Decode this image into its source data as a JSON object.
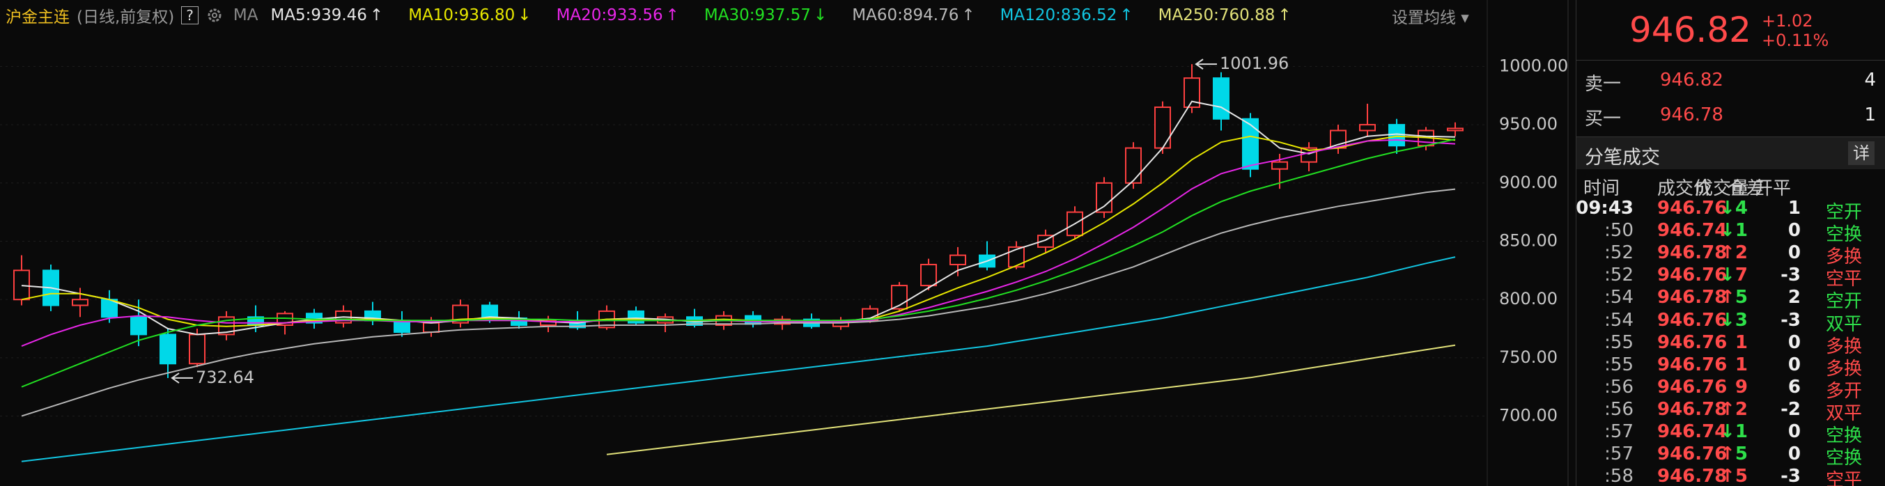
{
  "chart_data": {
    "type": "candlestick",
    "title": "沪金主连",
    "subtitle": "(日线,前复权)",
    "help": "?",
    "ma_label": "MA",
    "settings": "设置均线",
    "ylim": [
      640,
      1057
    ],
    "yticks": [
      {
        "value": 1000,
        "label": "1000.00"
      },
      {
        "value": 950,
        "label": "950.00"
      },
      {
        "value": 900,
        "label": "900.00"
      },
      {
        "value": 850,
        "label": "850.00"
      },
      {
        "value": 800,
        "label": "800.00"
      },
      {
        "value": 750,
        "label": "750.00"
      },
      {
        "value": 700,
        "label": "700.00"
      }
    ],
    "grid": true,
    "up_color": "#ff4040",
    "down_color": "#00d8e8",
    "candles": [
      [
        800,
        838,
        795,
        825
      ],
      [
        825,
        830,
        790,
        795
      ],
      [
        795,
        810,
        785,
        800
      ],
      [
        800,
        808,
        780,
        785
      ],
      [
        785,
        800,
        760,
        770
      ],
      [
        770,
        775,
        732.64,
        745
      ],
      [
        745,
        775,
        742,
        770
      ],
      [
        770,
        790,
        765,
        785
      ],
      [
        785,
        795,
        772,
        778
      ],
      [
        778,
        790,
        770,
        788
      ],
      [
        788,
        792,
        775,
        780
      ],
      [
        780,
        795,
        776,
        790
      ],
      [
        790,
        798,
        778,
        782
      ],
      [
        782,
        790,
        768,
        772
      ],
      [
        772,
        785,
        768,
        780
      ],
      [
        780,
        800,
        776,
        795
      ],
      [
        795,
        798,
        780,
        784
      ],
      [
        784,
        790,
        775,
        778
      ],
      [
        778,
        786,
        772,
        782
      ],
      [
        782,
        790,
        774,
        776
      ],
      [
        776,
        795,
        774,
        790
      ],
      [
        790,
        794,
        778,
        780
      ],
      [
        780,
        788,
        772,
        785
      ],
      [
        785,
        792,
        776,
        778
      ],
      [
        778,
        790,
        774,
        786
      ],
      [
        786,
        790,
        776,
        779
      ],
      [
        779,
        786,
        774,
        783
      ],
      [
        783,
        788,
        775,
        777
      ],
      [
        777,
        785,
        774,
        782
      ],
      [
        782,
        795,
        780,
        792
      ],
      [
        792,
        815,
        790,
        812
      ],
      [
        812,
        835,
        808,
        830
      ],
      [
        830,
        845,
        820,
        838
      ],
      [
        838,
        850,
        825,
        828
      ],
      [
        828,
        850,
        826,
        845
      ],
      [
        845,
        860,
        840,
        855
      ],
      [
        855,
        880,
        852,
        875
      ],
      [
        875,
        905,
        870,
        900
      ],
      [
        900,
        935,
        895,
        930
      ],
      [
        930,
        970,
        925,
        965
      ],
      [
        965,
        1001.96,
        960,
        990
      ],
      [
        990,
        995,
        945,
        955
      ],
      [
        955,
        960,
        905,
        912
      ],
      [
        912,
        925,
        895,
        918
      ],
      [
        918,
        935,
        910,
        930
      ],
      [
        930,
        950,
        925,
        945
      ],
      [
        945,
        968,
        940,
        950
      ],
      [
        950,
        955,
        925,
        932
      ],
      [
        932,
        948,
        928,
        945
      ],
      [
        945,
        952,
        940,
        946.82
      ]
    ],
    "series": [
      {
        "name": "MA5:939.46",
        "trend": "↑",
        "color": "#e6e6e6",
        "values": [
          812,
          810,
          805,
          800,
          790,
          775,
          770,
          772,
          776,
          780,
          783,
          785,
          784,
          782,
          780,
          782,
          785,
          784,
          781,
          780,
          783,
          784,
          783,
          781,
          782,
          782,
          781,
          781,
          781,
          784,
          795,
          810,
          825,
          833,
          843,
          851,
          865,
          880,
          902,
          930,
          970,
          965,
          950,
          930,
          925,
          933,
          940,
          942,
          940,
          939.46
        ]
      },
      {
        "name": "MA10:936.80",
        "trend": "↓",
        "color": "#e8e800",
        "values": [
          800,
          805,
          805,
          800,
          793,
          783,
          778,
          777,
          778,
          780,
          782,
          783,
          783,
          782,
          781,
          783,
          784,
          783,
          781,
          781,
          783,
          783,
          782,
          782,
          783,
          782,
          781,
          781,
          781,
          783,
          790,
          800,
          810,
          819,
          829,
          840,
          852,
          866,
          882,
          900,
          920,
          935,
          940,
          935,
          928,
          930,
          936,
          940,
          939,
          936.8
        ]
      },
      {
        "name": "MA20:933.56",
        "trend": "↑",
        "color": "#e826e8",
        "values": [
          760,
          770,
          778,
          784,
          786,
          785,
          782,
          780,
          780,
          780,
          781,
          782,
          782,
          781,
          781,
          782,
          782,
          782,
          781,
          781,
          782,
          782,
          782,
          782,
          782,
          781,
          781,
          781,
          781,
          782,
          787,
          793,
          800,
          807,
          815,
          824,
          835,
          848,
          862,
          878,
          895,
          908,
          915,
          920,
          926,
          931,
          936,
          937,
          935,
          933.56
        ]
      },
      {
        "name": "MA30:937.57",
        "trend": "↓",
        "color": "#22e022",
        "values": [
          725,
          735,
          745,
          755,
          765,
          772,
          778,
          782,
          784,
          784,
          783,
          783,
          782,
          782,
          782,
          782,
          783,
          783,
          783,
          782,
          782,
          782,
          782,
          782,
          782,
          782,
          782,
          782,
          782,
          783,
          786,
          790,
          795,
          801,
          808,
          816,
          825,
          835,
          846,
          858,
          872,
          884,
          893,
          900,
          907,
          914,
          921,
          927,
          932,
          937.57
        ]
      },
      {
        "name": "MA60:894.76",
        "trend": "↑",
        "color": "#b8b8b8",
        "values": [
          700,
          708,
          716,
          724,
          731,
          737,
          743,
          749,
          754,
          758,
          762,
          765,
          768,
          770,
          772,
          774,
          775,
          776,
          777,
          777,
          778,
          778,
          778,
          779,
          779,
          779,
          780,
          780,
          780,
          781,
          783,
          786,
          790,
          794,
          799,
          805,
          812,
          820,
          828,
          838,
          848,
          857,
          864,
          870,
          875,
          880,
          884,
          888,
          892,
          894.76
        ]
      },
      {
        "name": "MA120:836.52",
        "trend": "↑",
        "color": "#12c6e2",
        "values": [
          661,
          664,
          667,
          670,
          673,
          676,
          679,
          682,
          685,
          688,
          691,
          694,
          697,
          700,
          703,
          706,
          709,
          712,
          715,
          718,
          721,
          724,
          727,
          730,
          733,
          736,
          739,
          742,
          745,
          748,
          751,
          754,
          757,
          760,
          764,
          768,
          772,
          776,
          780,
          784,
          789,
          794,
          799,
          804,
          809,
          814,
          819,
          825,
          831,
          836.52
        ]
      },
      {
        "name": "MA250:760.88",
        "trend": "↑",
        "color": "#e2e27a",
        "values": [
          null,
          null,
          null,
          null,
          null,
          null,
          null,
          null,
          null,
          null,
          null,
          null,
          null,
          null,
          null,
          null,
          null,
          null,
          null,
          null,
          667,
          670,
          673,
          676,
          679,
          682,
          685,
          688,
          691,
          694,
          697,
          700,
          703,
          706,
          709,
          712,
          715,
          718,
          721,
          724,
          727,
          730,
          733,
          737,
          741,
          745,
          749,
          753,
          757,
          760.88
        ]
      }
    ]
  },
  "quote": {
    "price": 946.82,
    "change": "+1.02",
    "change_pct": "+0.11%"
  },
  "order_book": [
    {
      "label": "卖一",
      "price": 946.82,
      "volume": 4
    },
    {
      "label": "买一",
      "price": 946.78,
      "volume": 1
    }
  ],
  "trades": {
    "title": "分笔成交",
    "detail": "详",
    "headers": [
      "时间",
      "成交价",
      "成交量",
      "仓差",
      "开平"
    ],
    "rows": [
      {
        "time": "09:43",
        "price": 946.76,
        "arrow": "↓",
        "volume": 4,
        "diff": 1,
        "type": "空开",
        "color": "#2ee04a"
      },
      {
        "time": ":50",
        "price": 946.74,
        "arrow": "↓",
        "volume": 1,
        "diff": 0,
        "type": "空换",
        "color": "#2ee04a"
      },
      {
        "time": ":52",
        "price": 946.78,
        "arrow": "↑",
        "volume": 2,
        "diff": 0,
        "type": "多换",
        "color": "#ff4a4a"
      },
      {
        "time": ":52",
        "price": 946.76,
        "arrow": "↓",
        "volume": 7,
        "diff": -3,
        "type": "空平",
        "color": "#ff4a4a"
      },
      {
        "time": ":54",
        "price": 946.78,
        "arrow": "↑",
        "volume": 5,
        "diff": 2,
        "type": "空开",
        "color": "#2ee04a"
      },
      {
        "time": ":54",
        "price": 946.76,
        "arrow": "↓",
        "volume": 3,
        "diff": -3,
        "type": "双平",
        "color": "#2ee04a"
      },
      {
        "time": ":55",
        "price": 946.76,
        "volume": 1,
        "diff": 0,
        "type": "多换",
        "color": "#ff4a4a"
      },
      {
        "time": ":55",
        "price": 946.76,
        "volume": 1,
        "diff": 0,
        "type": "多换",
        "color": "#ff4a4a"
      },
      {
        "time": ":56",
        "price": 946.76,
        "volume": 9,
        "diff": 6,
        "type": "多开",
        "color": "#ff4a4a"
      },
      {
        "time": ":56",
        "price": 946.78,
        "arrow": "↑",
        "volume": 2,
        "diff": -2,
        "type": "双平",
        "color": "#ff4a4a"
      },
      {
        "time": ":57",
        "price": 946.74,
        "arrow": "↓",
        "volume": 1,
        "diff": 0,
        "type": "空换",
        "color": "#2ee04a"
      },
      {
        "time": ":57",
        "price": 946.76,
        "arrow": "↑",
        "volume": 5,
        "diff": 0,
        "type": "空换",
        "color": "#2ee04a"
      },
      {
        "time": ":58",
        "price": 946.78,
        "arrow": "↑",
        "volume": 5,
        "diff": -3,
        "type": "空平",
        "color": "#ff4a4a"
      }
    ]
  }
}
